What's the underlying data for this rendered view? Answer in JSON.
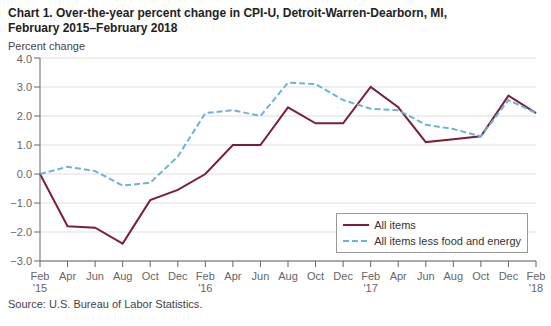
{
  "chart_data": {
    "type": "line",
    "title": "Chart 1. Over-the-year percent change in CPI-U, Detroit-Warren-Dearborn, MI,",
    "subtitle": "February 2015–February 2018",
    "y_label": "Percent change",
    "annotations": [
      "Source: U.S. Bureau of Labor Statistics."
    ],
    "categories": [
      "Feb\n'15",
      "Apr",
      "Jun",
      "Aug",
      "Oct",
      "Dec",
      "Feb\n'16",
      "Apr",
      "Jun",
      "Aug",
      "Oct",
      "Dec",
      "Feb\n'17",
      "Apr",
      "Jun",
      "Aug",
      "Oct",
      "Dec",
      "Feb\n'18"
    ],
    "series": [
      {
        "name": "All items",
        "color": "#7b1f3a",
        "line_style": "solid",
        "values": [
          0.0,
          -1.8,
          -1.85,
          -2.4,
          -0.9,
          -0.55,
          0.0,
          1.0,
          1.0,
          2.3,
          1.75,
          1.75,
          3.0,
          2.3,
          1.1,
          1.2,
          1.3,
          2.7,
          2.1
        ]
      },
      {
        "name": "All items less food and energy",
        "color": "#6ab4d9",
        "line_style": "dashed",
        "values": [
          0.0,
          0.25,
          0.1,
          -0.4,
          -0.3,
          0.6,
          2.1,
          2.2,
          2.0,
          3.15,
          3.1,
          2.55,
          2.25,
          2.2,
          1.7,
          1.55,
          1.3,
          2.55,
          2.1
        ]
      }
    ],
    "ylim": [
      -3.0,
      4.0
    ],
    "yticks": [
      {
        "value": -3.0,
        "label": "−3.0"
      },
      {
        "value": -2.0,
        "label": "−2.0"
      },
      {
        "value": -1.0,
        "label": "−1.0"
      },
      {
        "value": 0.0,
        "label": "0.0"
      },
      {
        "value": 1.0,
        "label": "1.0"
      },
      {
        "value": 2.0,
        "label": "2.0"
      },
      {
        "value": 3.0,
        "label": "3.0"
      },
      {
        "value": 4.0,
        "label": "4.0"
      }
    ],
    "grid": true,
    "legend": "lower right"
  }
}
